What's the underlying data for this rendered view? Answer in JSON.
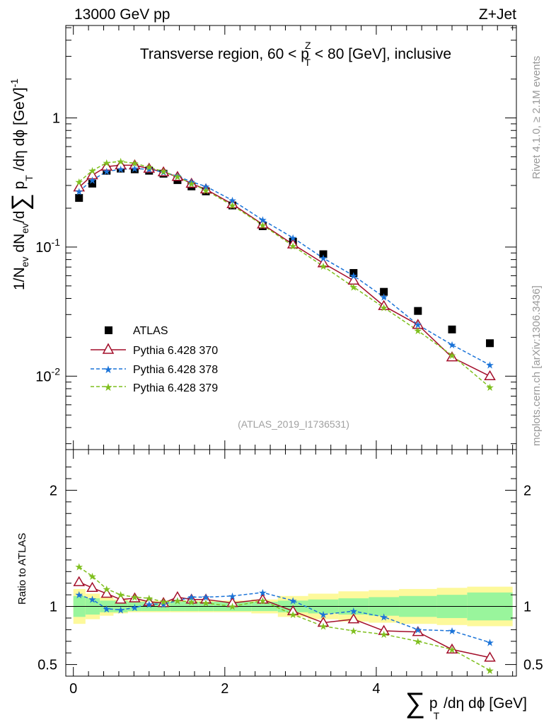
{
  "header": {
    "left_label": "13000 GeV pp",
    "right_label": "Z+Jet"
  },
  "side_labels": {
    "rivet": "Rivet 4.1.0, ≥ 2.1M events",
    "mcplots": "mcplots.cern.ch [arXiv:1306.3436]"
  },
  "main_title": {
    "prefix": "Transverse region, 60 < p",
    "sup": "Z",
    "sub": "T",
    "suffix": " < 80 [GeV], inclusive"
  },
  "watermark": "(ATLAS_2019_I1736531)",
  "ylabel_main": {
    "p1": "1/N",
    "s1": "ev",
    "p2": " dN",
    "s2": "ev",
    "p3": "/d",
    "sum": "∑",
    "p4": " p",
    "s4": "T",
    "p5": " /dη dϕ  [GeV]",
    "sup5": "-1"
  },
  "ylabel_ratio": "Ratio to ATLAS",
  "xlabel": {
    "sum": "∑",
    "p": " p",
    "sub": "T",
    "rest": " /dη dϕ [GeV]"
  },
  "colors": {
    "atlas": "#000000",
    "p370": "#a30e2a",
    "p378": "#1a73d8",
    "p379": "#7fbf1e",
    "band_inner": "#99f59c",
    "band_outer": "#fdf99b"
  },
  "chart_data": {
    "type": "scatter",
    "title": "Transverse region, 60 < pT^Z < 80 [GeV], inclusive",
    "xlabel": "∑ pT /dη dϕ [GeV]",
    "ylabel": "1/Nev dNev/d∑ pT /dη dϕ [GeV]^-1",
    "xlim": [
      -0.1,
      5.85
    ],
    "ylim": [
      0.0027,
      5.2
    ],
    "yscale": "log",
    "ratio_ylim": [
      0.4,
      2.35
    ],
    "x": [
      0.075,
      0.25,
      0.44,
      0.625,
      0.81,
      1.0,
      1.19,
      1.375,
      1.56,
      1.75,
      2.1,
      2.5,
      2.9,
      3.3,
      3.7,
      4.1,
      4.55,
      5.0,
      5.5
    ],
    "xticks": [
      0,
      2,
      4
    ],
    "yticks_main": [
      "10^-2",
      "10^-1",
      "1"
    ],
    "yticks_ratio": [
      "0.5",
      "1",
      "2"
    ],
    "legend": [
      "ATLAS",
      "Pythia 6.428 370",
      "Pythia 6.428 378",
      "Pythia 6.428 379"
    ],
    "legend_position": "lower-left",
    "series": [
      {
        "name": "ATLAS",
        "marker": "square",
        "values": [
          0.24,
          0.31,
          0.39,
          0.405,
          0.4,
          0.39,
          0.37,
          0.33,
          0.295,
          0.27,
          0.21,
          0.145,
          0.11,
          0.088,
          0.063,
          0.045,
          0.032,
          0.023,
          0.018
        ]
      },
      {
        "name": "Pythia 6.428 370",
        "marker": "open-triangle",
        "line": "solid",
        "values": [
          0.29,
          0.36,
          0.42,
          0.43,
          0.43,
          0.405,
          0.38,
          0.35,
          0.31,
          0.28,
          0.215,
          0.15,
          0.105,
          0.075,
          0.055,
          0.035,
          0.025,
          0.014,
          0.01
        ]
      },
      {
        "name": "Pythia 6.428 378",
        "marker": "star",
        "line": "dashed",
        "values": [
          0.27,
          0.33,
          0.385,
          0.4,
          0.405,
          0.4,
          0.38,
          0.355,
          0.32,
          0.295,
          0.23,
          0.162,
          0.118,
          0.082,
          0.06,
          0.041,
          0.025,
          0.0175,
          0.0122
        ]
      },
      {
        "name": "Pythia 6.428 379",
        "marker": "star",
        "line": "dashed",
        "values": [
          0.32,
          0.39,
          0.45,
          0.46,
          0.445,
          0.415,
          0.385,
          0.35,
          0.31,
          0.275,
          0.21,
          0.148,
          0.102,
          0.071,
          0.049,
          0.034,
          0.0225,
          0.0145,
          0.0082
        ]
      }
    ],
    "ratio_series": [
      {
        "name": "Pythia 6.428 370",
        "values": [
          1.21,
          1.16,
          1.11,
          1.06,
          1.07,
          1.04,
          1.03,
          1.08,
          1.06,
          1.06,
          1.03,
          1.06,
          0.96,
          0.86,
          0.89,
          0.79,
          0.78,
          0.63,
          0.56
        ]
      },
      {
        "name": "Pythia 6.428 378",
        "values": [
          1.1,
          1.06,
          0.98,
          0.97,
          0.99,
          1.02,
          1.02,
          1.05,
          1.08,
          1.08,
          1.09,
          1.12,
          1.05,
          0.93,
          0.96,
          0.91,
          0.8,
          0.79,
          0.69
        ]
      },
      {
        "name": "Pythia 6.428 379",
        "values": [
          1.34,
          1.26,
          1.15,
          1.1,
          1.08,
          1.07,
          1.04,
          1.05,
          1.04,
          1.03,
          1.0,
          1.05,
          0.93,
          0.83,
          0.79,
          0.76,
          0.7,
          0.63,
          0.45
        ]
      }
    ],
    "ratio_band_edges": [
      0,
      0.16,
      0.35,
      0.53,
      0.72,
      0.9,
      1.1,
      1.28,
      1.47,
      1.65,
      1.85,
      2.35,
      2.7,
      3.1,
      3.5,
      3.9,
      4.3,
      4.8,
      5.2,
      5.8
    ],
    "ratio_band_inner": [
      0.09,
      0.07,
      0.05,
      0.05,
      0.04,
      0.04,
      0.04,
      0.04,
      0.04,
      0.04,
      0.04,
      0.04,
      0.05,
      0.06,
      0.07,
      0.08,
      0.09,
      0.1,
      0.12
    ],
    "ratio_band_outer": [
      0.15,
      0.11,
      0.08,
      0.06,
      0.05,
      0.05,
      0.05,
      0.05,
      0.05,
      0.05,
      0.05,
      0.06,
      0.09,
      0.11,
      0.13,
      0.14,
      0.15,
      0.16,
      0.17
    ]
  }
}
